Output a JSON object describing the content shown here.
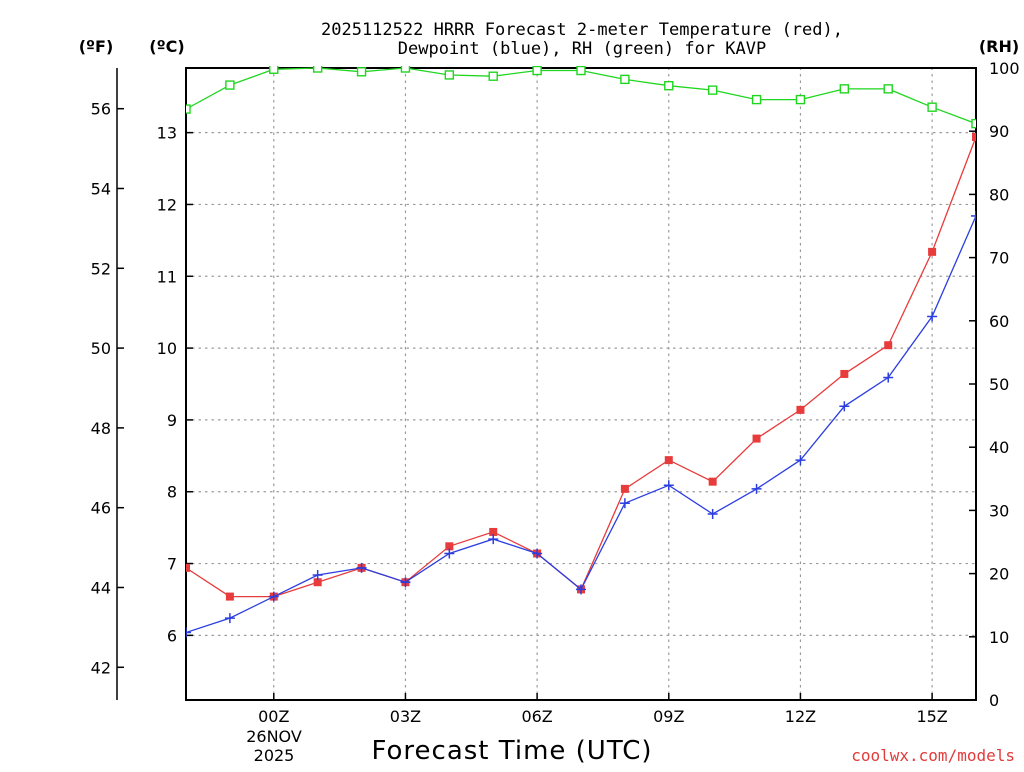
{
  "chart_data": {
    "type": "line",
    "title": "2025112522 HRRR Forecast 2-meter Temperature (red),",
    "subtitle": "Dewpoint (blue), RH (green) for KAVP",
    "xlabel": "Forecast Time (UTC)",
    "credit": "coolwx.com/models",
    "units": {
      "fahrenheit": "(ºF)",
      "celsius": "(ºC)",
      "rh": "(RH)"
    },
    "date_label": [
      "26NOV",
      "2025"
    ],
    "x_hours": [
      -2,
      -1,
      0,
      1,
      2,
      3,
      4,
      5,
      6,
      7,
      8,
      9,
      10,
      11,
      12,
      13,
      14,
      15,
      16
    ],
    "x_ticks": [
      {
        "hour": 0,
        "label": "00Z"
      },
      {
        "hour": 3,
        "label": "03Z"
      },
      {
        "hour": 6,
        "label": "06Z"
      },
      {
        "hour": 9,
        "label": "09Z"
      },
      {
        "hour": 12,
        "label": "12Z"
      },
      {
        "hour": 15,
        "label": "15Z"
      }
    ],
    "xlim": [
      -2,
      16
    ],
    "celsius_axis": {
      "range": [
        5.1,
        13.9
      ],
      "ticks": [
        6,
        7,
        8,
        9,
        10,
        11,
        12,
        13
      ]
    },
    "fahrenheit_axis": {
      "ticks": [
        42,
        44,
        46,
        48,
        50,
        52,
        54,
        56
      ]
    },
    "rh_axis": {
      "range": [
        0,
        100
      ],
      "ticks": [
        0,
        10,
        20,
        30,
        40,
        50,
        60,
        70,
        80,
        90,
        100
      ]
    },
    "series": [
      {
        "name": "Temperature",
        "unit": "°C",
        "color": "#e83b3b",
        "marker": "filled-square",
        "values": [
          6.94,
          6.54,
          6.54,
          6.74,
          6.94,
          6.74,
          7.24,
          7.44,
          7.14,
          6.64,
          8.04,
          8.44,
          8.14,
          8.74,
          9.14,
          9.64,
          10.04,
          11.34,
          12.94
        ]
      },
      {
        "name": "Dewpoint",
        "unit": "°C",
        "color": "#2b3ee0",
        "marker": "plus",
        "values": [
          6.04,
          6.24,
          6.54,
          6.84,
          6.94,
          6.74,
          7.14,
          7.34,
          7.14,
          6.64,
          7.84,
          8.09,
          7.69,
          8.04,
          8.44,
          9.19,
          9.59,
          10.44,
          11.84
        ]
      },
      {
        "name": "RH",
        "unit": "%",
        "color": "#1fd61f",
        "marker": "open-square",
        "values": [
          93.5,
          97.3,
          99.8,
          100,
          99.4,
          100,
          98.9,
          98.7,
          99.6,
          99.6,
          98.2,
          97.2,
          96.5,
          95.0,
          95.0,
          96.7,
          96.7,
          93.8,
          91.2
        ]
      }
    ]
  }
}
